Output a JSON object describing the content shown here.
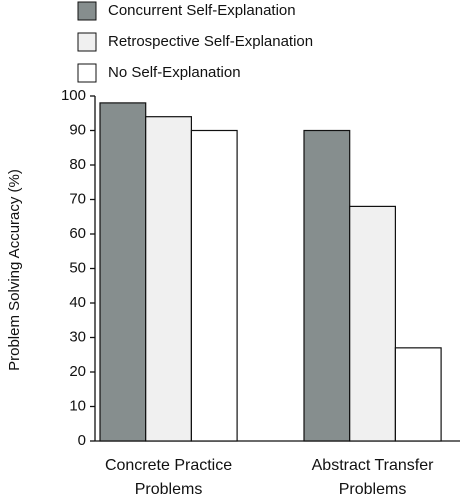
{
  "chart_data": {
    "type": "bar",
    "categories": [
      "Concrete Practice Problems",
      "Abstract Transfer Problems"
    ],
    "series": [
      {
        "name": "Concurrent Self-Explanation",
        "color": "#868e8e",
        "values": [
          98,
          90
        ]
      },
      {
        "name": "Retrospective Self-Explanation",
        "color": "#f0f0f0",
        "values": [
          94,
          68
        ]
      },
      {
        "name": "No Self-Explanation",
        "color": "#ffffff",
        "values": [
          90,
          27
        ]
      }
    ],
    "y_label": "Problem Solving Accuracy (%)",
    "ylim": [
      0,
      100
    ],
    "yticks": [
      0,
      10,
      20,
      30,
      40,
      50,
      60,
      70,
      80,
      90,
      100
    ],
    "legend": "top-left",
    "grid": false
  }
}
